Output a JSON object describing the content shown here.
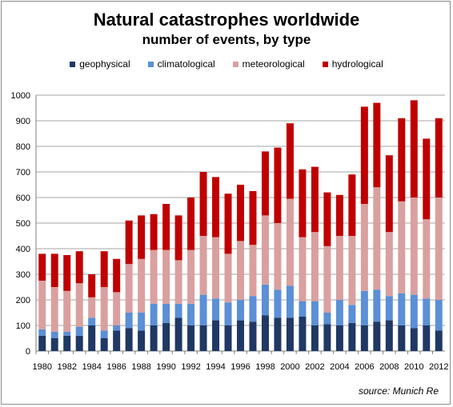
{
  "chart_data": {
    "type": "bar",
    "stacked": true,
    "title": "Natural catastrophes worldwide",
    "subtitle": "number of events, by type",
    "source": "source: Munich Re",
    "ylim": [
      0,
      1000
    ],
    "yticks": [
      0,
      100,
      200,
      300,
      400,
      500,
      600,
      700,
      800,
      900,
      1000
    ],
    "xtick_labels": [
      "1980",
      "1982",
      "1984",
      "1986",
      "1988",
      "1990",
      "1992",
      "1994",
      "1996",
      "1998",
      "2000",
      "2002",
      "2004",
      "2006",
      "2008",
      "2010",
      "2012"
    ],
    "grid": true,
    "legend_position": "top",
    "categories": [
      "1980",
      "1981",
      "1982",
      "1983",
      "1984",
      "1985",
      "1986",
      "1987",
      "1988",
      "1989",
      "1990",
      "1991",
      "1992",
      "1993",
      "1994",
      "1995",
      "1996",
      "1997",
      "1998",
      "1999",
      "2000",
      "2001",
      "2002",
      "2003",
      "2004",
      "2005",
      "2006",
      "2007",
      "2008",
      "2009",
      "2010",
      "2011",
      "2012"
    ],
    "series": [
      {
        "name": "geophysical",
        "color": "#1f3864",
        "values": [
          60,
          50,
          60,
          60,
          100,
          50,
          80,
          90,
          80,
          100,
          110,
          130,
          100,
          100,
          120,
          100,
          120,
          115,
          140,
          130,
          130,
          135,
          100,
          105,
          100,
          110,
          100,
          115,
          120,
          100,
          90,
          100,
          80
        ]
      },
      {
        "name": "climatological",
        "color": "#5b8fd6",
        "values": [
          25,
          25,
          15,
          35,
          30,
          30,
          20,
          60,
          70,
          85,
          75,
          55,
          85,
          120,
          85,
          90,
          80,
          100,
          120,
          110,
          125,
          60,
          95,
          45,
          100,
          70,
          135,
          125,
          95,
          125,
          130,
          105,
          120
        ]
      },
      {
        "name": "meteorological",
        "color": "#d9a09f",
        "values": [
          190,
          175,
          160,
          170,
          80,
          170,
          130,
          190,
          210,
          210,
          210,
          170,
          210,
          230,
          240,
          190,
          230,
          200,
          270,
          260,
          340,
          250,
          270,
          260,
          250,
          270,
          340,
          400,
          250,
          360,
          380,
          310,
          400
        ]
      },
      {
        "name": "hydrological",
        "color": "#c00000",
        "values": [
          105,
          130,
          140,
          125,
          90,
          140,
          130,
          170,
          170,
          140,
          180,
          175,
          205,
          250,
          235,
          235,
          220,
          210,
          250,
          295,
          295,
          265,
          255,
          210,
          160,
          240,
          380,
          330,
          300,
          325,
          380,
          315,
          310
        ]
      }
    ]
  }
}
